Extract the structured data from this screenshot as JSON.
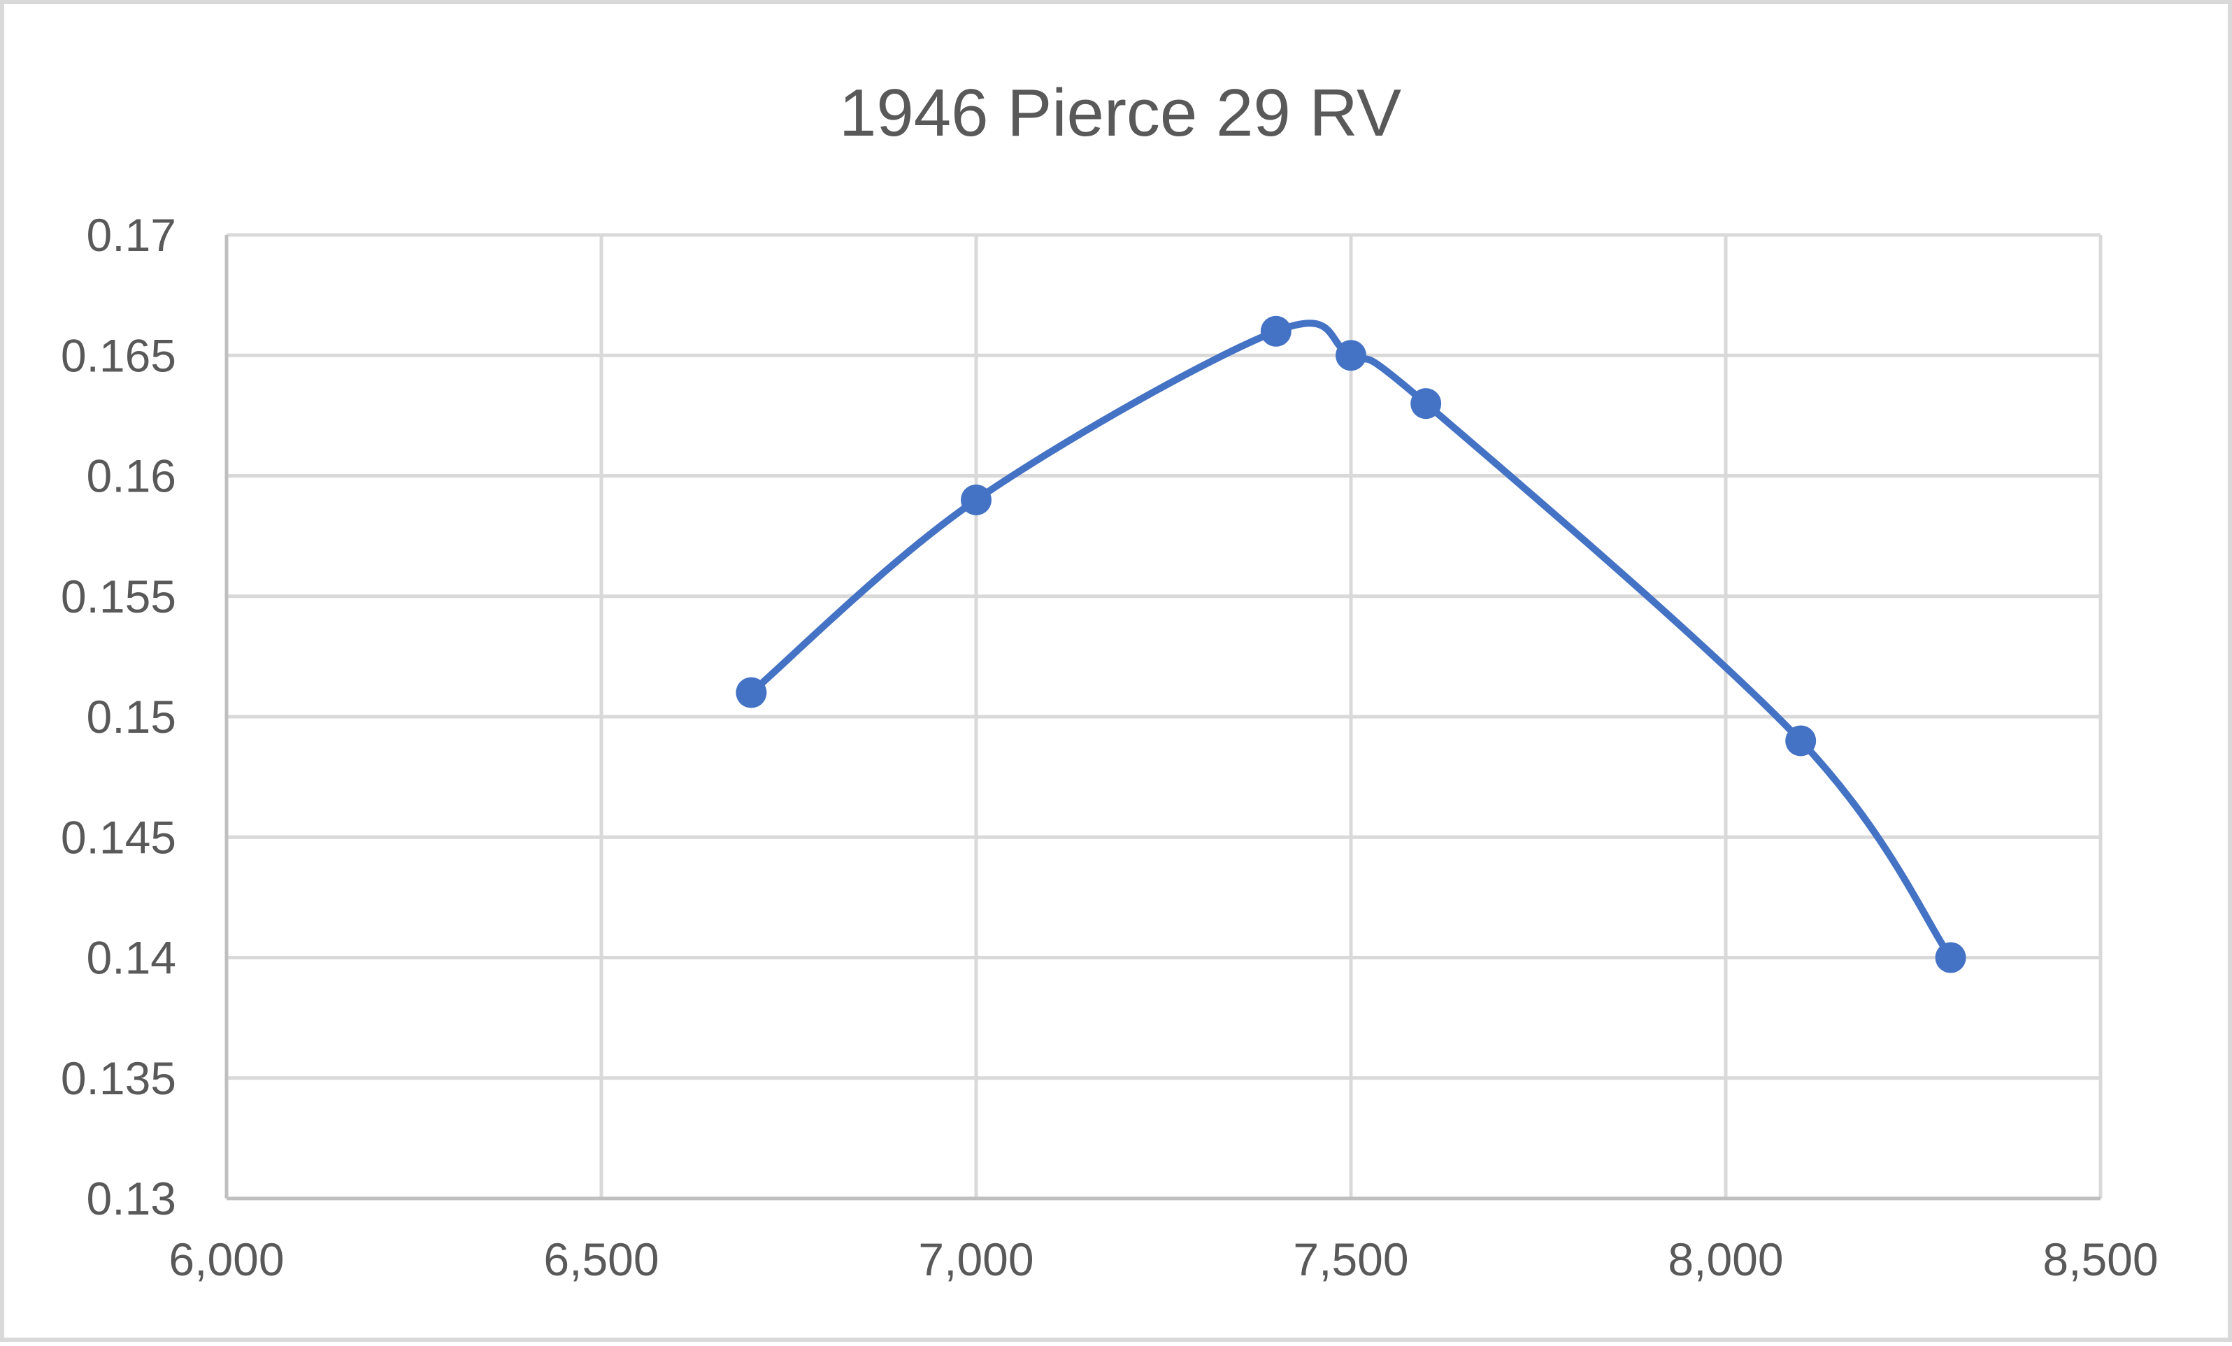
{
  "chart_data": {
    "type": "scatter",
    "title": "1946 Pierce 29 RV",
    "xlabel": "",
    "ylabel": "",
    "xlim": [
      6000,
      8500
    ],
    "ylim": [
      0.13,
      0.17
    ],
    "x_ticks": [
      6000,
      6500,
      7000,
      7500,
      8000,
      8500
    ],
    "x_tick_labels": [
      "6,000",
      "6,500",
      "7,000",
      "7,500",
      "8,000",
      "8,500"
    ],
    "y_ticks": [
      0.13,
      0.135,
      0.14,
      0.145,
      0.15,
      0.155,
      0.16,
      0.165,
      0.17
    ],
    "y_tick_labels": [
      "0.13",
      "0.135",
      "0.14",
      "0.145",
      "0.15",
      "0.155",
      "0.16",
      "0.165",
      "0.17"
    ],
    "grid": true,
    "line_style": "smooth",
    "series": [
      {
        "color": "#4472c4",
        "x": [
          6700,
          7000,
          7400,
          7500,
          7600,
          8100,
          8300
        ],
        "y": [
          0.151,
          0.159,
          0.166,
          0.165,
          0.163,
          0.149,
          0.14
        ]
      }
    ]
  }
}
